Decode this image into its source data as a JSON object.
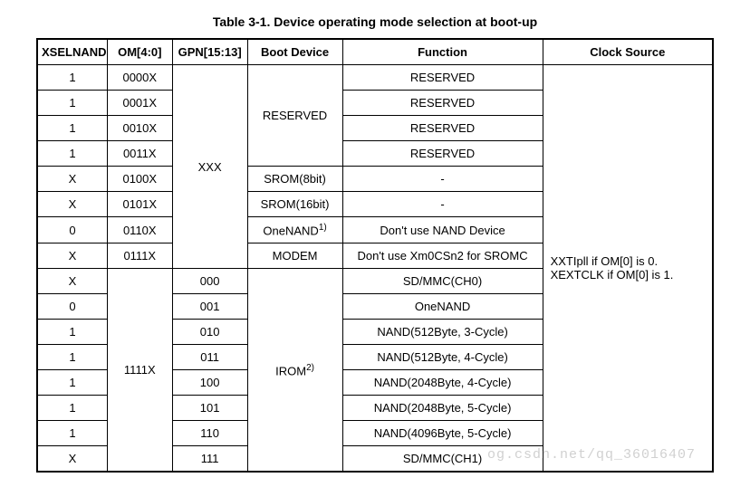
{
  "title": "Table 3-1. Device operating mode selection at boot-up",
  "headers": {
    "xselnand": "XSELNAND",
    "om": "OM[4:0]",
    "gpn": "GPN[15:13]",
    "boot": "Boot Device",
    "func": "Function",
    "clk": "Clock Source"
  },
  "gpn_top": "XXX",
  "boot_reserved": "RESERVED",
  "clock_text": "XXTIpll if OM[0] is 0. XEXTCLK if OM[0] is 1.",
  "rows_top": [
    {
      "xsel": "1",
      "om": "0000X",
      "func": "RESERVED"
    },
    {
      "xsel": "1",
      "om": "0001X",
      "func": "RESERVED"
    },
    {
      "xsel": "1",
      "om": "0010X",
      "func": "RESERVED"
    },
    {
      "xsel": "1",
      "om": "0011X",
      "func": "RESERVED"
    }
  ],
  "rows_mid": [
    {
      "xsel": "X",
      "om": "0100X",
      "boot": "SROM(8bit)",
      "func": "-"
    },
    {
      "xsel": "X",
      "om": "0101X",
      "boot": "SROM(16bit)",
      "func": "-"
    },
    {
      "xsel": "0",
      "om": "0110X",
      "boot_html": "OneNAND",
      "sup": "1)",
      "func": "Don't use NAND Device"
    },
    {
      "xsel": "X",
      "om": "0111X",
      "boot": "MODEM",
      "func": "Don't use Xm0CSn2 for SROMC"
    }
  ],
  "om_bottom": "1111X",
  "boot_irom": "IROM",
  "boot_irom_sup": "2)",
  "rows_bot": [
    {
      "xsel": "X",
      "gpn": "000",
      "func": "SD/MMC(CH0)"
    },
    {
      "xsel": "0",
      "gpn": "001",
      "func": "OneNAND"
    },
    {
      "xsel": "1",
      "gpn": "010",
      "func": "NAND(512Byte, 3-Cycle)"
    },
    {
      "xsel": "1",
      "gpn": "011",
      "func": "NAND(512Byte, 4-Cycle)"
    },
    {
      "xsel": "1",
      "gpn": "100",
      "func": "NAND(2048Byte, 4-Cycle)"
    },
    {
      "xsel": "1",
      "gpn": "101",
      "func": "NAND(2048Byte, 5-Cycle)"
    },
    {
      "xsel": "1",
      "gpn": "110",
      "func": "NAND(4096Byte, 5-Cycle)"
    },
    {
      "xsel": "X",
      "gpn": "111",
      "func": "SD/MMC(CH1)"
    }
  ],
  "watermark": "og.csdn.net/qq_36016407"
}
